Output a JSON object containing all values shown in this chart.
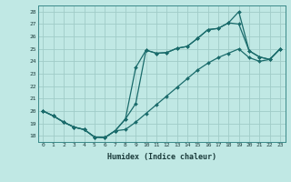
{
  "xlabel": "Humidex (Indice chaleur)",
  "bg_color": "#c0e8e4",
  "grid_color": "#a0ccc8",
  "line_color": "#1a6b6b",
  "xlim": [
    -0.5,
    23.5
  ],
  "ylim": [
    17.5,
    28.5
  ],
  "yticks": [
    18,
    19,
    20,
    21,
    22,
    23,
    24,
    25,
    26,
    27,
    28
  ],
  "xticks": [
    0,
    1,
    2,
    3,
    4,
    5,
    6,
    7,
    8,
    9,
    10,
    11,
    12,
    13,
    14,
    15,
    16,
    17,
    18,
    19,
    20,
    21,
    22,
    23
  ],
  "line1_x": [
    0,
    1,
    2,
    3,
    4,
    5,
    6,
    7,
    8,
    9,
    10,
    11,
    12,
    13,
    14,
    15,
    16,
    17,
    18,
    19,
    20,
    21,
    22,
    23
  ],
  "line1_y": [
    20.0,
    19.6,
    19.1,
    18.7,
    18.5,
    17.9,
    17.85,
    18.4,
    19.35,
    20.6,
    24.9,
    24.65,
    24.7,
    25.05,
    25.2,
    25.85,
    26.55,
    26.65,
    27.1,
    27.0,
    24.85,
    24.35,
    24.15,
    25.0
  ],
  "line2_x": [
    0,
    1,
    2,
    3,
    4,
    5,
    6,
    7,
    8,
    9,
    10,
    11,
    12,
    13,
    14,
    15,
    16,
    17,
    18,
    19,
    20,
    21,
    22,
    23
  ],
  "line2_y": [
    20.0,
    19.6,
    19.1,
    18.7,
    18.5,
    17.9,
    17.85,
    18.4,
    19.35,
    23.5,
    24.9,
    24.65,
    24.7,
    25.05,
    25.2,
    25.85,
    26.55,
    26.65,
    27.1,
    28.0,
    24.85,
    24.35,
    24.15,
    25.0
  ],
  "line3_x": [
    0,
    1,
    2,
    3,
    4,
    5,
    6,
    7,
    8,
    9,
    10,
    11,
    12,
    13,
    14,
    15,
    16,
    17,
    18,
    19,
    20,
    21,
    22,
    23
  ],
  "line3_y": [
    20.0,
    19.6,
    19.1,
    18.7,
    18.5,
    17.9,
    17.85,
    18.4,
    18.5,
    19.1,
    19.8,
    20.5,
    21.2,
    21.9,
    22.6,
    23.3,
    23.85,
    24.3,
    24.65,
    25.0,
    24.3,
    24.0,
    24.15,
    25.0
  ]
}
